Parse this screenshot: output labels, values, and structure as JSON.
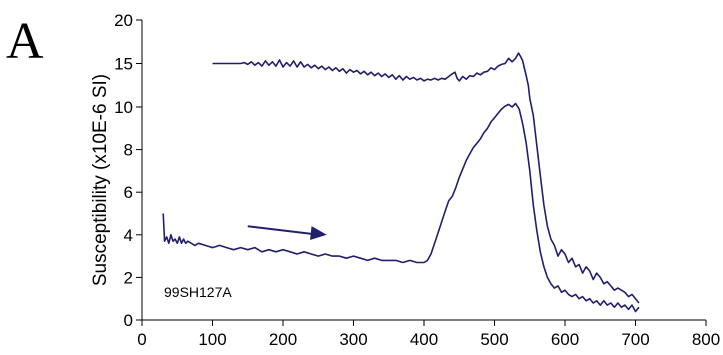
{
  "panel_letter": "A",
  "sample_label": "99SH127A",
  "colors": {
    "series": "#1f1f6e",
    "axis": "#000000"
  },
  "chart_data": {
    "type": "line",
    "ylabel": "Susceptibility (x10E-6 SI)",
    "xlabel": "",
    "xlim": [
      0,
      800
    ],
    "ylim": [
      0,
      20
    ],
    "x_ticks": [
      0,
      100,
      200,
      300,
      400,
      500,
      600,
      700,
      800
    ],
    "y_ticks": [
      0,
      2,
      4,
      6,
      8,
      10,
      15,
      20
    ],
    "series": [
      {
        "x": [
          30,
          32,
          35,
          38,
          41,
          44,
          47,
          50,
          53,
          56,
          59,
          62,
          65,
          70,
          75,
          80,
          90,
          100,
          110,
          120,
          130,
          140,
          150,
          160,
          170,
          180,
          190,
          200,
          210,
          220,
          230,
          240,
          250,
          260,
          270,
          280,
          290,
          300,
          310,
          320,
          330,
          340,
          350,
          360,
          370,
          380,
          390,
          400,
          405,
          410,
          415,
          420,
          425,
          430,
          435,
          440,
          445,
          450,
          455,
          460,
          465,
          470,
          475,
          480,
          485,
          490,
          495,
          500,
          505,
          510,
          515,
          520,
          525,
          530,
          535,
          540,
          545,
          550,
          555,
          560,
          565,
          570,
          575,
          580,
          585,
          590,
          595,
          600,
          605,
          610,
          615,
          620,
          625,
          630,
          635,
          640,
          645,
          650,
          655,
          660,
          665,
          670,
          675,
          680,
          685,
          690,
          695,
          700,
          705
        ],
        "y": [
          5.0,
          3.7,
          3.9,
          3.6,
          4.0,
          3.7,
          3.8,
          3.6,
          3.9,
          3.6,
          3.8,
          3.6,
          3.7,
          3.6,
          3.5,
          3.6,
          3.5,
          3.4,
          3.5,
          3.4,
          3.3,
          3.4,
          3.3,
          3.4,
          3.2,
          3.3,
          3.2,
          3.3,
          3.2,
          3.1,
          3.2,
          3.1,
          3.0,
          3.1,
          3.0,
          3.0,
          2.9,
          3.0,
          2.9,
          2.8,
          2.9,
          2.8,
          2.8,
          2.8,
          2.7,
          2.8,
          2.7,
          2.7,
          2.8,
          3.1,
          3.6,
          4.1,
          4.6,
          5.1,
          5.6,
          5.8,
          6.2,
          6.7,
          7.1,
          7.5,
          7.8,
          8.1,
          8.3,
          8.5,
          8.8,
          9.0,
          9.3,
          9.5,
          9.7,
          9.9,
          10.1,
          10.3,
          10.0,
          10.4,
          9.9,
          9.2,
          8.3,
          7.0,
          5.4,
          4.2,
          3.2,
          2.5,
          2.0,
          1.7,
          1.5,
          1.6,
          1.3,
          1.4,
          1.2,
          1.1,
          1.2,
          1.0,
          1.1,
          0.9,
          1.0,
          0.8,
          0.9,
          0.7,
          0.9,
          0.7,
          0.8,
          0.6,
          0.8,
          0.6,
          0.7,
          0.5,
          0.7,
          0.4,
          0.6
        ]
      },
      {
        "x": [
          705,
          700,
          695,
          690,
          685,
          680,
          675,
          670,
          665,
          660,
          655,
          650,
          645,
          640,
          635,
          630,
          625,
          620,
          615,
          610,
          605,
          600,
          595,
          590,
          585,
          580,
          575,
          570,
          565,
          560,
          555,
          550,
          548,
          545,
          542,
          540,
          537,
          534,
          530,
          525,
          520,
          515,
          510,
          505,
          500,
          495,
          490,
          485,
          480,
          475,
          470,
          465,
          460,
          455,
          450,
          447,
          444,
          440,
          435,
          430,
          425,
          420,
          415,
          410,
          405,
          400,
          395,
          390,
          385,
          380,
          375,
          370,
          365,
          360,
          355,
          350,
          345,
          340,
          335,
          330,
          325,
          320,
          315,
          310,
          305,
          300,
          295,
          290,
          285,
          280,
          275,
          270,
          265,
          260,
          255,
          250,
          245,
          240,
          235,
          230,
          225,
          220,
          215,
          210,
          205,
          200,
          195,
          190,
          185,
          180,
          175,
          170,
          165,
          160,
          155,
          150,
          145,
          140,
          135,
          130,
          125,
          120,
          115,
          110,
          105,
          100
        ],
        "y": [
          0.8,
          1.0,
          1.2,
          1.1,
          1.3,
          1.4,
          1.5,
          1.4,
          1.6,
          1.8,
          1.7,
          2.0,
          2.2,
          1.9,
          2.3,
          2.5,
          2.2,
          2.6,
          2.5,
          2.9,
          2.7,
          3.1,
          3.3,
          3.0,
          3.5,
          3.8,
          4.4,
          5.4,
          6.8,
          8.2,
          9.6,
          11.0,
          12.5,
          13.6,
          14.6,
          15.3,
          15.8,
          16.2,
          15.6,
          15.2,
          15.6,
          15.0,
          14.9,
          14.7,
          14.3,
          14.5,
          14.1,
          14.0,
          13.7,
          13.9,
          13.5,
          13.6,
          13.2,
          13.5,
          13.0,
          13.3,
          14.0,
          13.8,
          13.5,
          13.2,
          13.3,
          13.1,
          13.3,
          13.1,
          13.2,
          13.0,
          13.3,
          13.1,
          13.4,
          13.2,
          13.5,
          13.1,
          13.6,
          13.2,
          13.7,
          13.4,
          13.8,
          13.5,
          13.9,
          13.6,
          14.0,
          13.7,
          14.1,
          13.8,
          14.2,
          14.0,
          14.3,
          13.9,
          14.4,
          14.1,
          14.5,
          14.2,
          14.6,
          14.3,
          14.7,
          14.4,
          14.8,
          14.5,
          14.9,
          14.6,
          15.2,
          14.6,
          15.3,
          14.7,
          15.1,
          14.6,
          15.4,
          14.7,
          15.2,
          14.8,
          15.3,
          14.7,
          15.1,
          14.8,
          15.2,
          14.9,
          15.1,
          15.0,
          15.0,
          15.0,
          15.0,
          15.0,
          15.0,
          15.0,
          15.0,
          15.0
        ]
      }
    ],
    "arrow": {
      "from": [
        150,
        4.4
      ],
      "to": [
        262,
        4.0
      ]
    }
  }
}
